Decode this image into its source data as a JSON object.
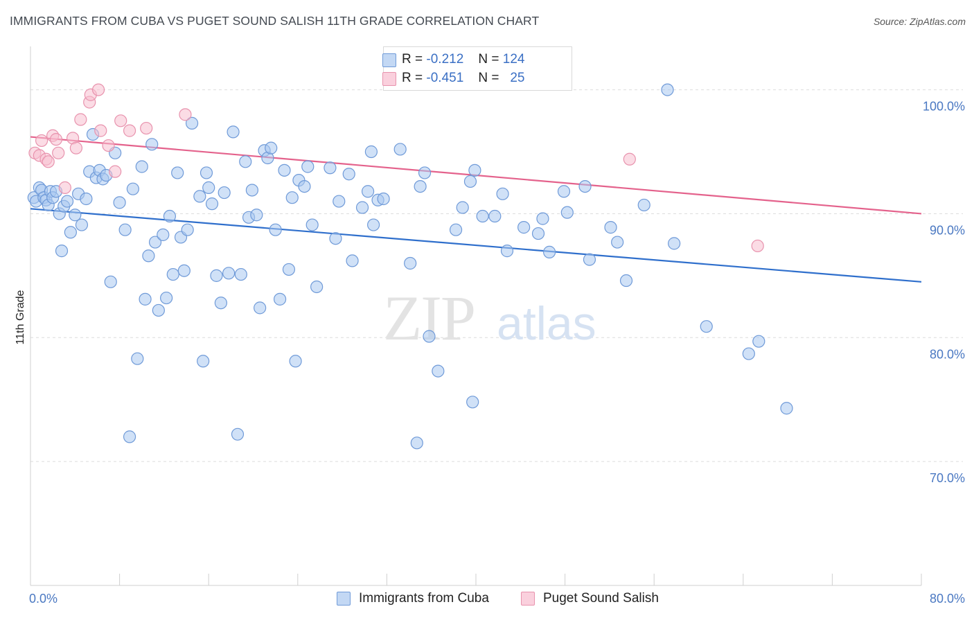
{
  "header": {
    "title": "IMMIGRANTS FROM CUBA VS PUGET SOUND SALISH 11TH GRADE CORRELATION CHART",
    "source": "Source: ZipAtlas.com"
  },
  "watermark": {
    "zip": "ZIP",
    "atlas": "atlas"
  },
  "colors": {
    "blue_fill": "#a9c8f0",
    "blue_stroke": "#6f9ad8",
    "blue_line": "#2f6fcc",
    "pink_fill": "#f8bfd0",
    "pink_stroke": "#e892ad",
    "pink_line": "#e4628c",
    "accent_text": "#4a78c2",
    "grid": "#dcdcdc"
  },
  "legend": {
    "r_label": "R =",
    "n_label": "N =",
    "series": [
      {
        "r": "-0.212",
        "n": "124"
      },
      {
        "r": "-0.451",
        "n": "25"
      }
    ]
  },
  "chart_data": {
    "type": "scatter",
    "title": "IMMIGRANTS FROM CUBA VS PUGET SOUND SALISH 11TH GRADE CORRELATION CHART",
    "xlabel": "",
    "ylabel": "11th Grade",
    "xlim": [
      0,
      80
    ],
    "ylim": [
      60,
      103.5
    ],
    "x_tick_labels": [
      "0.0%",
      "80.0%"
    ],
    "y_ticks": [
      {
        "value": 70,
        "label": "70.0%"
      },
      {
        "value": 80,
        "label": "80.0%"
      },
      {
        "value": 90,
        "label": "90.0%"
      },
      {
        "value": 100,
        "label": "100.0%"
      }
    ],
    "grid": true,
    "series": [
      {
        "name": "Immigrants from Cuba",
        "r": -0.212,
        "n": 124,
        "trend": {
          "x": [
            0,
            80
          ],
          "y": [
            90.4,
            84.5
          ]
        },
        "points": [
          [
            0.3,
            91.3
          ],
          [
            0.5,
            91.0
          ],
          [
            0.8,
            92.1
          ],
          [
            1.0,
            91.9
          ],
          [
            1.2,
            91.3
          ],
          [
            1.4,
            91.1
          ],
          [
            1.6,
            90.7
          ],
          [
            1.8,
            91.8
          ],
          [
            2.0,
            91.3
          ],
          [
            2.3,
            91.8
          ],
          [
            2.6,
            90.0
          ],
          [
            2.8,
            87.0
          ],
          [
            3.0,
            90.6
          ],
          [
            3.3,
            91.0
          ],
          [
            3.6,
            88.5
          ],
          [
            4.0,
            89.9
          ],
          [
            4.3,
            91.6
          ],
          [
            4.6,
            89.1
          ],
          [
            5.0,
            91.2
          ],
          [
            5.3,
            93.4
          ],
          [
            5.6,
            96.4
          ],
          [
            5.9,
            92.9
          ],
          [
            6.2,
            93.5
          ],
          [
            6.5,
            92.8
          ],
          [
            6.8,
            93.1
          ],
          [
            7.2,
            84.5
          ],
          [
            7.6,
            94.9
          ],
          [
            8.0,
            90.9
          ],
          [
            8.5,
            88.7
          ],
          [
            8.9,
            72.0
          ],
          [
            9.2,
            92.0
          ],
          [
            9.6,
            78.3
          ],
          [
            10.0,
            93.8
          ],
          [
            10.3,
            83.1
          ],
          [
            10.6,
            86.6
          ],
          [
            10.9,
            95.6
          ],
          [
            11.2,
            87.7
          ],
          [
            11.5,
            82.2
          ],
          [
            11.9,
            88.3
          ],
          [
            12.2,
            83.2
          ],
          [
            12.5,
            89.8
          ],
          [
            12.8,
            85.1
          ],
          [
            13.2,
            93.3
          ],
          [
            13.5,
            88.1
          ],
          [
            13.8,
            85.4
          ],
          [
            14.1,
            88.7
          ],
          [
            14.5,
            97.3
          ],
          [
            15.2,
            91.4
          ],
          [
            15.5,
            78.1
          ],
          [
            15.8,
            93.3
          ],
          [
            16.0,
            92.1
          ],
          [
            16.3,
            90.8
          ],
          [
            16.7,
            85.0
          ],
          [
            17.1,
            82.8
          ],
          [
            17.4,
            91.7
          ],
          [
            17.8,
            85.2
          ],
          [
            18.2,
            96.6
          ],
          [
            18.6,
            72.2
          ],
          [
            18.9,
            85.1
          ],
          [
            19.3,
            94.2
          ],
          [
            19.6,
            89.7
          ],
          [
            19.9,
            91.9
          ],
          [
            20.3,
            89.9
          ],
          [
            20.6,
            82.4
          ],
          [
            21.0,
            95.1
          ],
          [
            21.3,
            94.5
          ],
          [
            21.6,
            95.3
          ],
          [
            22.0,
            88.7
          ],
          [
            22.4,
            83.1
          ],
          [
            22.8,
            93.5
          ],
          [
            23.2,
            85.5
          ],
          [
            23.5,
            91.3
          ],
          [
            23.8,
            78.1
          ],
          [
            24.1,
            92.7
          ],
          [
            24.6,
            92.2
          ],
          [
            24.9,
            93.8
          ],
          [
            25.3,
            89.1
          ],
          [
            25.7,
            84.1
          ],
          [
            26.9,
            93.7
          ],
          [
            27.4,
            88.0
          ],
          [
            27.7,
            91.0
          ],
          [
            28.6,
            93.2
          ],
          [
            28.9,
            86.2
          ],
          [
            29.8,
            90.5
          ],
          [
            30.3,
            91.8
          ],
          [
            30.6,
            95.0
          ],
          [
            30.8,
            89.1
          ],
          [
            31.2,
            91.1
          ],
          [
            31.7,
            91.2
          ],
          [
            33.2,
            95.2
          ],
          [
            34.1,
            86.0
          ],
          [
            34.7,
            71.5
          ],
          [
            35.0,
            92.2
          ],
          [
            35.4,
            93.3
          ],
          [
            35.8,
            80.1
          ],
          [
            36.6,
            77.3
          ],
          [
            38.2,
            88.7
          ],
          [
            38.8,
            90.5
          ],
          [
            39.5,
            92.6
          ],
          [
            39.7,
            74.8
          ],
          [
            39.9,
            93.5
          ],
          [
            40.6,
            89.8
          ],
          [
            41.7,
            89.8
          ],
          [
            42.4,
            91.6
          ],
          [
            42.8,
            87.0
          ],
          [
            44.3,
            88.9
          ],
          [
            45.6,
            88.4
          ],
          [
            46.0,
            89.6
          ],
          [
            46.6,
            86.9
          ],
          [
            47.9,
            91.8
          ],
          [
            48.2,
            90.1
          ],
          [
            49.8,
            92.2
          ],
          [
            50.2,
            86.3
          ],
          [
            52.1,
            88.9
          ],
          [
            52.7,
            87.7
          ],
          [
            53.5,
            84.6
          ],
          [
            55.1,
            90.7
          ],
          [
            57.2,
            100.0
          ],
          [
            57.8,
            87.6
          ],
          [
            60.7,
            80.9
          ],
          [
            64.5,
            78.7
          ],
          [
            65.4,
            79.7
          ],
          [
            67.9,
            74.3
          ]
        ]
      },
      {
        "name": "Puget Sound Salish",
        "r": -0.451,
        "n": 25,
        "trend": {
          "x": [
            0,
            80
          ],
          "y": [
            96.2,
            90.0
          ]
        },
        "points": [
          [
            0.4,
            94.9
          ],
          [
            0.8,
            94.7
          ],
          [
            1.0,
            95.9
          ],
          [
            1.4,
            94.4
          ],
          [
            1.6,
            94.2
          ],
          [
            2.0,
            96.3
          ],
          [
            2.3,
            96.0
          ],
          [
            2.5,
            94.9
          ],
          [
            3.1,
            92.1
          ],
          [
            3.8,
            96.1
          ],
          [
            4.1,
            95.3
          ],
          [
            4.5,
            97.6
          ],
          [
            5.3,
            99.0
          ],
          [
            5.4,
            99.6
          ],
          [
            6.1,
            100.0
          ],
          [
            6.3,
            96.7
          ],
          [
            7.0,
            95.5
          ],
          [
            7.6,
            93.4
          ],
          [
            8.1,
            97.5
          ],
          [
            8.9,
            96.7
          ],
          [
            10.4,
            96.9
          ],
          [
            13.9,
            98.0
          ],
          [
            53.8,
            94.4
          ],
          [
            65.3,
            87.4
          ]
        ]
      }
    ]
  }
}
